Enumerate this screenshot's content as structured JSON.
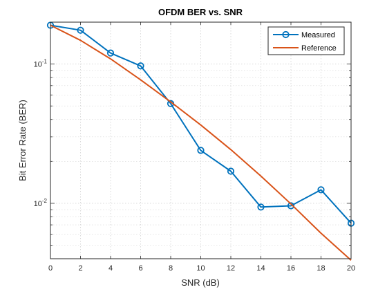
{
  "chart_data": {
    "type": "line",
    "title": "OFDM BER vs. SNR",
    "xlabel": "SNR (dB)",
    "ylabel": "Bit Error Rate (BER)",
    "xlim": [
      0,
      20
    ],
    "ylim": [
      0.004,
      0.2
    ],
    "yscale": "log",
    "grid": true,
    "legend_location": "top-right",
    "x_ticks": [
      0,
      2,
      4,
      6,
      8,
      10,
      12,
      14,
      16,
      18,
      20
    ],
    "y_ticks": [
      {
        "value": 0.01,
        "base": "10",
        "exp": "-2"
      },
      {
        "value": 0.1,
        "base": "10",
        "exp": "-1"
      }
    ],
    "series": [
      {
        "name": "Measured",
        "color": "#0072BD",
        "marker": "circle",
        "x": [
          0,
          2,
          4,
          6,
          8,
          10,
          12,
          14,
          16,
          18,
          20
        ],
        "y": [
          0.19,
          0.175,
          0.12,
          0.097,
          0.052,
          0.024,
          0.017,
          0.0094,
          0.0096,
          0.0125,
          0.0072
        ]
      },
      {
        "name": "Reference",
        "color": "#D95319",
        "marker": "none",
        "x": [
          0,
          2,
          4,
          6,
          8,
          10,
          12,
          14,
          16,
          18,
          20
        ],
        "y": [
          0.19,
          0.148,
          0.109,
          0.077,
          0.0535,
          0.0365,
          0.0243,
          0.0157,
          0.0099,
          0.0061,
          0.0039
        ]
      }
    ]
  }
}
